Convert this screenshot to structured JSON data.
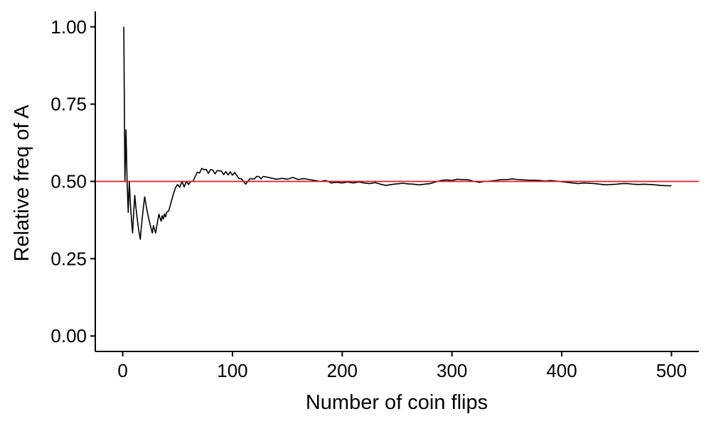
{
  "chart_data": {
    "type": "line",
    "xlabel": "Number of coin flips",
    "ylabel": "Relative freq of A",
    "xlim": [
      -25,
      525
    ],
    "ylim": [
      -0.05,
      1.05
    ],
    "x_ticks": [
      0,
      100,
      200,
      300,
      400,
      500
    ],
    "x_tick_labels": [
      "0",
      "100",
      "200",
      "300",
      "400",
      "500"
    ],
    "y_ticks": [
      0,
      0.25,
      0.5,
      0.75,
      1
    ],
    "y_tick_labels": [
      "0.00",
      "0.25",
      "0.50",
      "0.75",
      "1.00"
    ],
    "grid": false,
    "reference_line": {
      "y": 0.5,
      "color": "#e41a1c"
    },
    "series": [
      {
        "color": "#000000",
        "points": [
          [
            1,
            1.0
          ],
          [
            2,
            0.5
          ],
          [
            3,
            0.667
          ],
          [
            4,
            0.5
          ],
          [
            5,
            0.4
          ],
          [
            6,
            0.5
          ],
          [
            7,
            0.429
          ],
          [
            8,
            0.375
          ],
          [
            9,
            0.333
          ],
          [
            10,
            0.4
          ],
          [
            11,
            0.455
          ],
          [
            12,
            0.417
          ],
          [
            13,
            0.385
          ],
          [
            14,
            0.357
          ],
          [
            15,
            0.333
          ],
          [
            16,
            0.313
          ],
          [
            17,
            0.353
          ],
          [
            18,
            0.389
          ],
          [
            19,
            0.421
          ],
          [
            20,
            0.45
          ],
          [
            21,
            0.429
          ],
          [
            22,
            0.409
          ],
          [
            23,
            0.391
          ],
          [
            24,
            0.375
          ],
          [
            25,
            0.36
          ],
          [
            26,
            0.346
          ],
          [
            27,
            0.333
          ],
          [
            28,
            0.357
          ],
          [
            29,
            0.345
          ],
          [
            30,
            0.333
          ],
          [
            31,
            0.355
          ],
          [
            32,
            0.375
          ],
          [
            33,
            0.394
          ],
          [
            34,
            0.382
          ],
          [
            35,
            0.371
          ],
          [
            36,
            0.389
          ],
          [
            37,
            0.378
          ],
          [
            38,
            0.395
          ],
          [
            39,
            0.385
          ],
          [
            40,
            0.4
          ],
          [
            42,
            0.405
          ],
          [
            44,
            0.432
          ],
          [
            46,
            0.457
          ],
          [
            48,
            0.479
          ],
          [
            50,
            0.49
          ],
          [
            52,
            0.481
          ],
          [
            54,
            0.5
          ],
          [
            56,
            0.482
          ],
          [
            58,
            0.5
          ],
          [
            60,
            0.49
          ],
          [
            62,
            0.5
          ],
          [
            64,
            0.5
          ],
          [
            66,
            0.515
          ],
          [
            68,
            0.53
          ],
          [
            70,
            0.527
          ],
          [
            72,
            0.542
          ],
          [
            74,
            0.538
          ],
          [
            76,
            0.539
          ],
          [
            78,
            0.526
          ],
          [
            80,
            0.538
          ],
          [
            82,
            0.537
          ],
          [
            84,
            0.524
          ],
          [
            86,
            0.535
          ],
          [
            88,
            0.534
          ],
          [
            90,
            0.533
          ],
          [
            92,
            0.522
          ],
          [
            94,
            0.532
          ],
          [
            96,
            0.521
          ],
          [
            98,
            0.531
          ],
          [
            100,
            0.52
          ],
          [
            102,
            0.529
          ],
          [
            104,
            0.519
          ],
          [
            106,
            0.509
          ],
          [
            108,
            0.509
          ],
          [
            110,
            0.5
          ],
          [
            112,
            0.491
          ],
          [
            114,
            0.5
          ],
          [
            116,
            0.509
          ],
          [
            118,
            0.508
          ],
          [
            120,
            0.508
          ],
          [
            122,
            0.516
          ],
          [
            124,
            0.516
          ],
          [
            126,
            0.508
          ],
          [
            128,
            0.516
          ],
          [
            130,
            0.515
          ],
          [
            135,
            0.511
          ],
          [
            140,
            0.507
          ],
          [
            145,
            0.51
          ],
          [
            150,
            0.507
          ],
          [
            155,
            0.513
          ],
          [
            160,
            0.506
          ],
          [
            165,
            0.509
          ],
          [
            170,
            0.506
          ],
          [
            175,
            0.503
          ],
          [
            180,
            0.5
          ],
          [
            185,
            0.503
          ],
          [
            190,
            0.495
          ],
          [
            195,
            0.497
          ],
          [
            200,
            0.495
          ],
          [
            205,
            0.498
          ],
          [
            210,
            0.495
          ],
          [
            215,
            0.498
          ],
          [
            220,
            0.495
          ],
          [
            225,
            0.493
          ],
          [
            230,
            0.496
          ],
          [
            235,
            0.491
          ],
          [
            240,
            0.487
          ],
          [
            245,
            0.49
          ],
          [
            250,
            0.492
          ],
          [
            255,
            0.494
          ],
          [
            260,
            0.492
          ],
          [
            265,
            0.491
          ],
          [
            270,
            0.489
          ],
          [
            275,
            0.491
          ],
          [
            280,
            0.493
          ],
          [
            285,
            0.498
          ],
          [
            290,
            0.503
          ],
          [
            295,
            0.505
          ],
          [
            300,
            0.503
          ],
          [
            305,
            0.507
          ],
          [
            310,
            0.506
          ],
          [
            315,
            0.505
          ],
          [
            320,
            0.5
          ],
          [
            325,
            0.497
          ],
          [
            330,
            0.5
          ],
          [
            335,
            0.501
          ],
          [
            340,
            0.503
          ],
          [
            345,
            0.506
          ],
          [
            350,
            0.506
          ],
          [
            355,
            0.508
          ],
          [
            360,
            0.506
          ],
          [
            365,
            0.505
          ],
          [
            370,
            0.504
          ],
          [
            375,
            0.504
          ],
          [
            380,
            0.503
          ],
          [
            385,
            0.501
          ],
          [
            390,
            0.503
          ],
          [
            395,
            0.501
          ],
          [
            400,
            0.499
          ],
          [
            405,
            0.497
          ],
          [
            410,
            0.495
          ],
          [
            415,
            0.493
          ],
          [
            420,
            0.495
          ],
          [
            425,
            0.494
          ],
          [
            430,
            0.493
          ],
          [
            435,
            0.491
          ],
          [
            440,
            0.489
          ],
          [
            445,
            0.49
          ],
          [
            450,
            0.491
          ],
          [
            455,
            0.493
          ],
          [
            460,
            0.493
          ],
          [
            465,
            0.491
          ],
          [
            470,
            0.49
          ],
          [
            475,
            0.491
          ],
          [
            480,
            0.49
          ],
          [
            485,
            0.489
          ],
          [
            490,
            0.487
          ],
          [
            495,
            0.486
          ],
          [
            500,
            0.486
          ]
        ]
      }
    ]
  }
}
